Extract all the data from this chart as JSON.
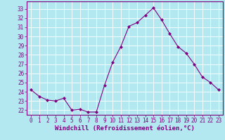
{
  "hours": [
    0,
    1,
    2,
    3,
    4,
    5,
    6,
    7,
    8,
    9,
    10,
    11,
    12,
    13,
    14,
    15,
    16,
    17,
    18,
    19,
    20,
    21,
    22,
    23
  ],
  "values": [
    24.2,
    23.5,
    23.1,
    23.0,
    23.3,
    22.0,
    22.1,
    21.8,
    21.8,
    24.7,
    27.2,
    28.9,
    31.1,
    31.5,
    32.3,
    33.1,
    31.8,
    30.3,
    28.9,
    28.2,
    27.0,
    25.6,
    25.0,
    24.2
  ],
  "line_color": "#800080",
  "marker": "D",
  "marker_size": 2.0,
  "bg_color": "#b3e8f0",
  "grid_color": "#ffffff",
  "xlabel": "Windchill (Refroidissement éolien,°C)",
  "ylim": [
    21.5,
    33.8
  ],
  "xlim": [
    -0.5,
    23.5
  ],
  "yticks": [
    22,
    23,
    24,
    25,
    26,
    27,
    28,
    29,
    30,
    31,
    32,
    33
  ],
  "xticks": [
    0,
    1,
    2,
    3,
    4,
    5,
    6,
    7,
    8,
    9,
    10,
    11,
    12,
    13,
    14,
    15,
    16,
    17,
    18,
    19,
    20,
    21,
    22,
    23
  ],
  "tick_color": "#800080",
  "label_color": "#800080",
  "font_size_ticks": 5.5,
  "font_size_xlabel": 6.5,
  "linewidth": 0.8
}
